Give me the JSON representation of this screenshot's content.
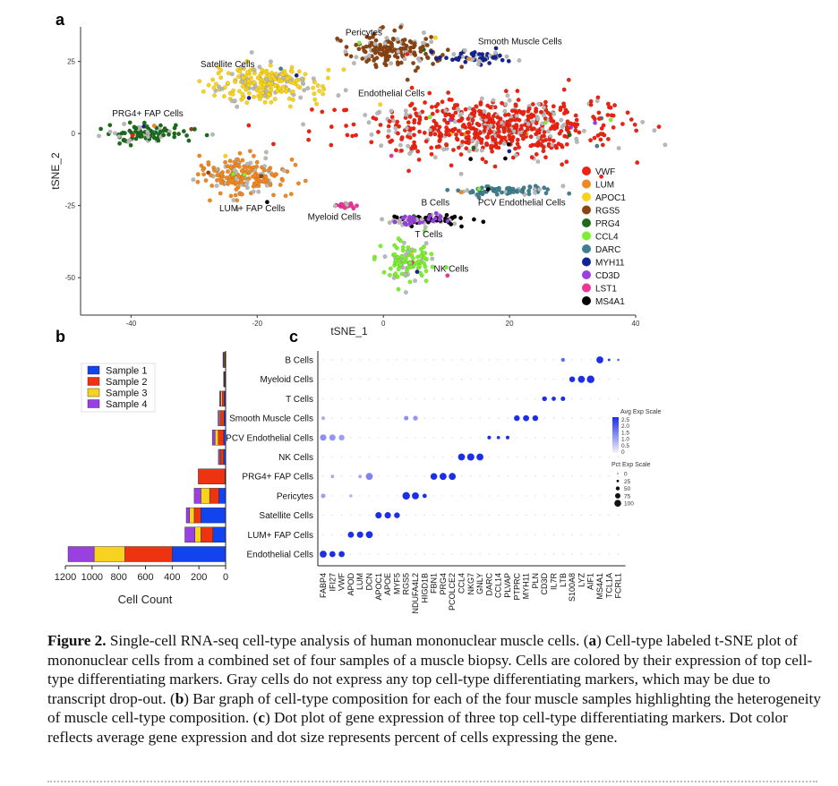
{
  "panels": {
    "a": "a",
    "b": "b",
    "c": "c"
  },
  "tsne": {
    "xlabel": "tSNE_1",
    "ylabel": "tSNE_2",
    "xlim": [
      -48,
      40
    ],
    "ylim": [
      -63,
      37
    ],
    "xticks": [
      -40,
      -20,
      0,
      20,
      40
    ],
    "yticks": [
      25,
      0,
      -25,
      -50
    ],
    "xtick_labels": [
      "-40",
      "-20",
      "0",
      "20",
      "40"
    ],
    "ytick_labels": [
      "25",
      "0",
      "-25",
      "-50"
    ],
    "clusters": [
      {
        "name": "Pericytes",
        "label": "Pericytes",
        "marker": "RGS5",
        "cx": 2,
        "cy": 29,
        "sx": 4.5,
        "sy": 3.5,
        "n": 170,
        "label_x": -6,
        "label_y": 34
      },
      {
        "name": "Smooth Muscle Cells",
        "label": "Smooth Muscle Cells",
        "marker": "MYH11",
        "cx": 15,
        "cy": 26.5,
        "sx": 3.3,
        "sy": 1.3,
        "n": 60,
        "label_x": 15,
        "label_y": 31
      },
      {
        "name": "Satellite Cells",
        "label": "Satellite Cells",
        "marker": "APOC1",
        "cx": -19,
        "cy": 17,
        "sx": 5,
        "sy": 4,
        "n": 240,
        "label_x": -29,
        "label_y": 23
      },
      {
        "name": "Endothelial Cells",
        "label": "Endothelial Cells",
        "marker": "VWF",
        "cx": 17,
        "cy": 2,
        "sx": 12,
        "sy": 6,
        "n": 650,
        "label_x": -4,
        "label_y": 13
      },
      {
        "name": "PRG4+ FAP Cells",
        "label": "PRG4+ FAP Cells",
        "marker": "PRG4",
        "cx": -38,
        "cy": 0,
        "sx": 4.5,
        "sy": 1.6,
        "n": 110,
        "label_x": -43,
        "label_y": 6
      },
      {
        "name": "LUM+ FAP Cells",
        "label": "LUM+ FAP Cells",
        "marker": "LUM",
        "cx": -22,
        "cy": -15,
        "sx": 4,
        "sy": 4,
        "n": 200,
        "label_x": -26,
        "label_y": -27
      },
      {
        "name": "PCV Endothelial Cells",
        "label": "PCV Endothelial Cells",
        "marker": "DARC",
        "cx": 19,
        "cy": -20,
        "sx": 4.5,
        "sy": 1.2,
        "n": 80,
        "label_x": 15,
        "label_y": -25
      },
      {
        "name": "Myeloid Cells",
        "label": "Myeloid Cells",
        "marker": "LST1",
        "cx": -6,
        "cy": -25,
        "sx": 1.3,
        "sy": 0.6,
        "n": 22,
        "label_x": -12,
        "label_y": -30
      },
      {
        "name": "B Cells",
        "label": "B Cells",
        "marker": "MS4A1",
        "cx": 7,
        "cy": -30,
        "sx": 3.5,
        "sy": 1.1,
        "n": 65,
        "label_x": 6,
        "label_y": -25
      },
      {
        "name": "T Cells",
        "label": "T Cells",
        "marker": "CD3D",
        "cx": 5,
        "cy": -30,
        "sx": 2.5,
        "sy": 1,
        "n": 40,
        "label_x": 5,
        "label_y": -36
      },
      {
        "name": "NK Cells",
        "label": "NK Cells",
        "marker": "CCL4",
        "cx": 4,
        "cy": -45,
        "sx": 2.5,
        "sy": 4,
        "n": 110,
        "label_x": 8,
        "label_y": -48
      }
    ],
    "legend": [
      {
        "label": "VWF",
        "color": "#ee2211"
      },
      {
        "label": "LUM",
        "color": "#ee8822"
      },
      {
        "label": "APOC1",
        "color": "#f7d21e"
      },
      {
        "label": "RGS5",
        "color": "#8b4513"
      },
      {
        "label": "PRG4",
        "color": "#1b6b1b"
      },
      {
        "label": "CCL4",
        "color": "#7cf030"
      },
      {
        "label": "DARC",
        "color": "#3f7f8f"
      },
      {
        "label": "MYH11",
        "color": "#13238f"
      },
      {
        "label": "CD3D",
        "color": "#9a3fe0"
      },
      {
        "label": "LST1",
        "color": "#ee3399"
      },
      {
        "label": "MS4A1",
        "color": "#000000"
      }
    ],
    "unassigned_color": "#b8b8b8"
  },
  "chart_data": [
    {
      "type": "scatter",
      "title": "Cell-type labeled t-SNE plot",
      "xlabel": "tSNE_1",
      "ylabel": "tSNE_2",
      "xlim": [
        -48,
        40
      ],
      "ylim": [
        -63,
        37
      ],
      "note": "Clusters approximated by centers; see tsne.clusters"
    },
    {
      "type": "bar",
      "orientation": "horizontal-stacked-reversed",
      "xlabel": "Cell Count",
      "xlim": [
        0,
        1200
      ],
      "xticks": [
        1200,
        1000,
        800,
        600,
        400,
        200,
        0
      ],
      "categories": [
        "B Cells",
        "Myeloid Cells",
        "T Cells",
        "Smooth Muscle Cells",
        "PCV Endothelial Cells",
        "NK Cells",
        "PRG4+ FAP Cells",
        "Pericytes",
        "Satellite Cells",
        "LUM+ FAP Cells",
        "Endothelial Cells"
      ],
      "series": [
        {
          "name": "Sample 1",
          "color": "#1144ee",
          "values": [
            5,
            4,
            10,
            12,
            15,
            15,
            5,
            50,
            185,
            95,
            400
          ]
        },
        {
          "name": "Sample 2",
          "color": "#ee3311",
          "values": [
            5,
            4,
            15,
            25,
            40,
            22,
            200,
            70,
            50,
            90,
            355
          ]
        },
        {
          "name": "Sample 3",
          "color": "#f7d21e",
          "values": [
            5,
            3,
            10,
            8,
            25,
            7,
            0,
            65,
            35,
            45,
            230
          ]
        },
        {
          "name": "Sample 4",
          "color": "#9a3fe0",
          "values": [
            5,
            4,
            10,
            12,
            20,
            10,
            0,
            50,
            25,
            75,
            195
          ]
        }
      ],
      "legend": [
        "Sample 1",
        "Sample 2",
        "Sample 3",
        "Sample 4"
      ]
    },
    {
      "type": "dot",
      "title": "Dot plot of gene expression",
      "rows": [
        "B Cells",
        "Myeloid Cells",
        "T Cells",
        "Smooth Muscle Cells",
        "PCV Endothelial Cells",
        "NK Cells",
        "PRG4+ FAP Cells",
        "Pericytes",
        "Satellite Cells",
        "LUM+ FAP Cells",
        "Endothelial Cells"
      ],
      "genes": [
        "FABP4",
        "IFI27",
        "VWF",
        "APOD",
        "LUM",
        "DCN",
        "APOC1",
        "APOE",
        "MYF5",
        "RGS5",
        "NDUFA4L2",
        "HIGD1B",
        "FBN1",
        "PRG4",
        "PCOLCE2",
        "CCL4",
        "NKG7",
        "GNLY",
        "DARC",
        "CCL14",
        "PLVAP",
        "PTPRC",
        "MYH11",
        "PLN",
        "CD3D",
        "IL7R",
        "LTB",
        "S100A8",
        "LYZ",
        "AIF1",
        "MS4A1",
        "TCL1A",
        "FCRL1"
      ],
      "expressed": [
        {
          "row": "B Cells",
          "gene": "LTB",
          "pct": 35,
          "exp": 1.6
        },
        {
          "row": "B Cells",
          "gene": "MS4A1",
          "pct": 85,
          "exp": 2.5
        },
        {
          "row": "B Cells",
          "gene": "TCL1A",
          "pct": 15,
          "exp": 2.2
        },
        {
          "row": "B Cells",
          "gene": "FCRL1",
          "pct": 8,
          "exp": 1.8
        },
        {
          "row": "Myeloid Cells",
          "gene": "S100A8",
          "pct": 65,
          "exp": 2.5
        },
        {
          "row": "Myeloid Cells",
          "gene": "LYZ",
          "pct": 85,
          "exp": 2.5
        },
        {
          "row": "Myeloid Cells",
          "gene": "AIF1",
          "pct": 95,
          "exp": 2.5
        },
        {
          "row": "T Cells",
          "gene": "CD3D",
          "pct": 50,
          "exp": 2.5
        },
        {
          "row": "T Cells",
          "gene": "IL7R",
          "pct": 40,
          "exp": 2.5
        },
        {
          "row": "T Cells",
          "gene": "LTB",
          "pct": 45,
          "exp": 2.5
        },
        {
          "row": "Smooth Muscle Cells",
          "gene": "FABP4",
          "pct": 30,
          "exp": 0.6
        },
        {
          "row": "Smooth Muscle Cells",
          "gene": "RGS5",
          "pct": 45,
          "exp": 1.0
        },
        {
          "row": "Smooth Muscle Cells",
          "gene": "NDUFA4L2",
          "pct": 50,
          "exp": 0.9
        },
        {
          "row": "Smooth Muscle Cells",
          "gene": "PTPRC",
          "pct": 65,
          "exp": 2.5
        },
        {
          "row": "Smooth Muscle Cells",
          "gene": "MYH11",
          "pct": 70,
          "exp": 2.5
        },
        {
          "row": "Smooth Muscle Cells",
          "gene": "PLN",
          "pct": 65,
          "exp": 2.5
        },
        {
          "row": "PCV Endothelial Cells",
          "gene": "FABP4",
          "pct": 75,
          "exp": 1.0
        },
        {
          "row": "PCV Endothelial Cells",
          "gene": "IFI27",
          "pct": 75,
          "exp": 0.9
        },
        {
          "row": "PCV Endothelial Cells",
          "gene": "VWF",
          "pct": 65,
          "exp": 0.8
        },
        {
          "row": "PCV Endothelial Cells",
          "gene": "DARC",
          "pct": 30,
          "exp": 2.5
        },
        {
          "row": "PCV Endothelial Cells",
          "gene": "CCL14",
          "pct": 25,
          "exp": 2.5
        },
        {
          "row": "PCV Endothelial Cells",
          "gene": "PLVAP",
          "pct": 30,
          "exp": 2.5
        },
        {
          "row": "NK Cells",
          "gene": "CCL4",
          "pct": 85,
          "exp": 2.5
        },
        {
          "row": "NK Cells",
          "gene": "NKG7",
          "pct": 90,
          "exp": 2.5
        },
        {
          "row": "NK Cells",
          "gene": "GNLY",
          "pct": 85,
          "exp": 2.5
        },
        {
          "row": "PRG4+ FAP Cells",
          "gene": "IFI27",
          "pct": 25,
          "exp": 0.7
        },
        {
          "row": "PRG4+ FAP Cells",
          "gene": "LUM",
          "pct": 25,
          "exp": 0.7
        },
        {
          "row": "PRG4+ FAP Cells",
          "gene": "DCN",
          "pct": 85,
          "exp": 1.2
        },
        {
          "row": "PRG4+ FAP Cells",
          "gene": "FBN1",
          "pct": 80,
          "exp": 2.5
        },
        {
          "row": "PRG4+ FAP Cells",
          "gene": "PRG4",
          "pct": 85,
          "exp": 2.5
        },
        {
          "row": "PRG4+ FAP Cells",
          "gene": "PCOLCE2",
          "pct": 85,
          "exp": 2.5
        },
        {
          "row": "Pericytes",
          "gene": "FABP4",
          "pct": 45,
          "exp": 0.8
        },
        {
          "row": "Pericytes",
          "gene": "APOD",
          "pct": 20,
          "exp": 0.6
        },
        {
          "row": "Pericytes",
          "gene": "RGS5",
          "pct": 95,
          "exp": 2.5
        },
        {
          "row": "Pericytes",
          "gene": "NDUFA4L2",
          "pct": 85,
          "exp": 2.5
        },
        {
          "row": "Pericytes",
          "gene": "HIGD1B",
          "pct": 40,
          "exp": 2.5
        },
        {
          "row": "Satellite Cells",
          "gene": "APOC1",
          "pct": 75,
          "exp": 2.5
        },
        {
          "row": "Satellite Cells",
          "gene": "APOE",
          "pct": 75,
          "exp": 2.5
        },
        {
          "row": "Satellite Cells",
          "gene": "MYF5",
          "pct": 65,
          "exp": 2.5
        },
        {
          "row": "LUM+ FAP Cells",
          "gene": "APOD",
          "pct": 70,
          "exp": 2.5
        },
        {
          "row": "LUM+ FAP Cells",
          "gene": "LUM",
          "pct": 75,
          "exp": 2.5
        },
        {
          "row": "LUM+ FAP Cells",
          "gene": "DCN",
          "pct": 85,
          "exp": 2.5
        },
        {
          "row": "Endothelial Cells",
          "gene": "FABP4",
          "pct": 85,
          "exp": 2.5
        },
        {
          "row": "Endothelial Cells",
          "gene": "IFI27",
          "pct": 70,
          "exp": 2.5
        },
        {
          "row": "Endothelial Cells",
          "gene": "VWF",
          "pct": 70,
          "exp": 2.5
        }
      ],
      "color_scale": {
        "title": "Avg Exp Scale",
        "ticks": [
          "2.5",
          "2.0",
          "1.5",
          "1.0",
          "0.5",
          "0"
        ],
        "low": "#f2f2f5",
        "high": "#1c2ee8",
        "max": 2.5
      },
      "size_scale": {
        "title": "Pct Exp Scale",
        "ticks": [
          "0",
          "25",
          "50",
          "75",
          "100"
        ]
      }
    }
  ],
  "caption": {
    "label": "Figure 2.",
    "text": " Single-cell RNA-seq cell-type analysis of human mononuclear muscle cells. (",
    "a_bold": "a",
    "text_a": ") Cell-type labeled t-SNE plot of mononuclear cells from a combined set of four samples of a muscle biopsy. Cells are colored by their expression of top cell-type differentiating markers. Gray cells do not express any top cell-type differentiating markers, which may be due to transcript drop-out. (",
    "b_bold": "b",
    "text_b": ") Bar graph of cell-type composition for each of the four muscle samples highlighting the heterogeneity of muscle cell-type composition. (",
    "c_bold": "c",
    "text_c": ") Dot plot of gene expression of three top cell-type differentiating markers. Dot color reflects average gene expression and dot size represents percent of cells expressing the gene."
  }
}
